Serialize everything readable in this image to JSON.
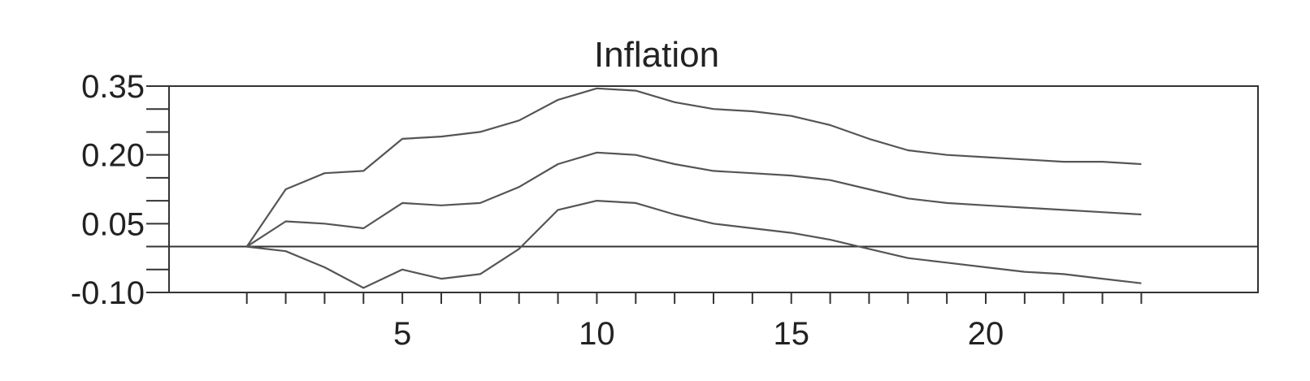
{
  "chart_data": {
    "type": "line",
    "title": "Inflation",
    "xlabel": "",
    "ylabel": "",
    "xlim": [
      -1,
      27
    ],
    "ylim": [
      -0.1,
      0.35
    ],
    "x_ticks": [
      5,
      10,
      15,
      20
    ],
    "y_ticks": [
      0.35,
      0.2,
      0.05,
      -0.1
    ],
    "y_tick_labels": [
      "0.35",
      "0.20",
      "0.05",
      "-0.10"
    ],
    "x_minor_ticks": [
      1,
      2,
      3,
      4,
      5,
      6,
      7,
      8,
      9,
      10,
      11,
      12,
      13,
      14,
      15,
      16,
      17,
      18,
      19,
      20,
      21,
      22,
      23,
      24
    ],
    "y_minor_ticks": [
      0.35,
      0.3,
      0.25,
      0.2,
      0.15,
      0.1,
      0.05,
      0.0,
      -0.05,
      -0.1
    ],
    "zero_line": 0.0,
    "grid": false,
    "legend": "none",
    "line_color": "#555555",
    "axis_color": "#333333",
    "x": [
      1,
      2,
      3,
      4,
      5,
      6,
      7,
      8,
      9,
      10,
      11,
      12,
      13,
      14,
      15,
      16,
      17,
      18,
      19,
      20,
      21,
      22,
      23,
      24
    ],
    "series": [
      {
        "values": [
          0.0,
          0.125,
          0.16,
          0.165,
          0.235,
          0.24,
          0.25,
          0.275,
          0.32,
          0.345,
          0.34,
          0.315,
          0.3,
          0.295,
          0.285,
          0.265,
          0.235,
          0.21,
          0.2,
          0.195,
          0.19,
          0.185,
          0.185,
          0.18
        ]
      },
      {
        "values": [
          0.0,
          0.055,
          0.05,
          0.04,
          0.095,
          0.09,
          0.095,
          0.13,
          0.18,
          0.205,
          0.2,
          0.18,
          0.165,
          0.16,
          0.155,
          0.145,
          0.125,
          0.105,
          0.095,
          0.09,
          0.085,
          0.08,
          0.075,
          0.07
        ]
      },
      {
        "values": [
          0.0,
          -0.01,
          -0.045,
          -0.09,
          -0.05,
          -0.07,
          -0.06,
          -0.005,
          0.08,
          0.1,
          0.095,
          0.07,
          0.05,
          0.04,
          0.03,
          0.015,
          -0.005,
          -0.025,
          -0.035,
          -0.045,
          -0.055,
          -0.06,
          -0.07,
          -0.08
        ]
      }
    ]
  }
}
